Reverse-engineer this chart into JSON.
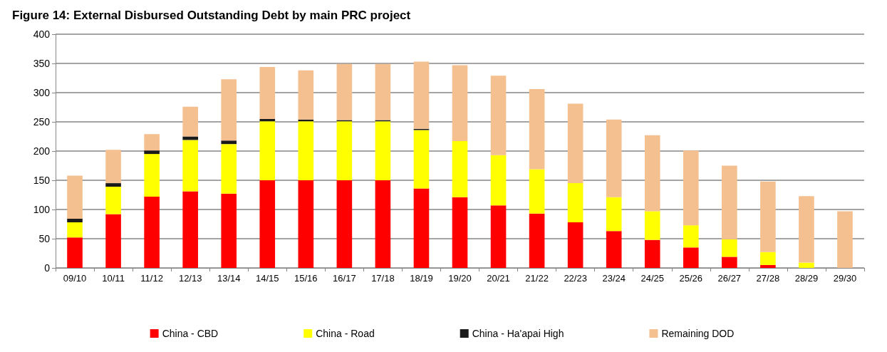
{
  "chart_data": {
    "type": "bar",
    "title": "Figure 14: External Disbursed Outstanding Debt by main PRC project",
    "stacked": true,
    "categories": [
      "09/10",
      "10/11",
      "11/12",
      "12/13",
      "13/14",
      "14/15",
      "15/16",
      "16/17",
      "17/18",
      "18/19",
      "19/20",
      "20/21",
      "21/22",
      "22/23",
      "23/24",
      "24/25",
      "25/26",
      "26/27",
      "27/28",
      "28/29",
      "29/30"
    ],
    "series": [
      {
        "name": "China - CBD",
        "color": "#ff0000",
        "values": [
          52,
          92,
          122,
          131,
          127,
          150,
          150,
          150,
          150,
          136,
          121,
          107,
          93,
          78,
          63,
          48,
          35,
          19,
          5,
          0,
          0
        ]
      },
      {
        "name": "China - Road",
        "color": "#ffff00",
        "values": [
          26,
          47,
          73,
          88,
          85,
          101,
          101,
          101,
          101,
          100,
          96,
          86,
          76,
          67,
          58,
          49,
          38,
          30,
          22,
          9,
          0
        ]
      },
      {
        "name": "China - Ha'apai High",
        "color": "#1a1a1a",
        "values": [
          6,
          6,
          6,
          6,
          6,
          4,
          3,
          2,
          2,
          2,
          0,
          0,
          0,
          0,
          0,
          0,
          0,
          0,
          0,
          0,
          0
        ]
      },
      {
        "name": "Remaining DOD",
        "color": "#f5c08f",
        "values": [
          74,
          57,
          28,
          51,
          105,
          89,
          84,
          96,
          96,
          115,
          130,
          136,
          137,
          136,
          133,
          130,
          128,
          126,
          121,
          114,
          97
        ]
      }
    ],
    "ylim": [
      0,
      400
    ],
    "yticks": [
      0,
      50,
      100,
      150,
      200,
      250,
      300,
      350,
      400
    ],
    "grid": "y",
    "legend": "bottom"
  }
}
